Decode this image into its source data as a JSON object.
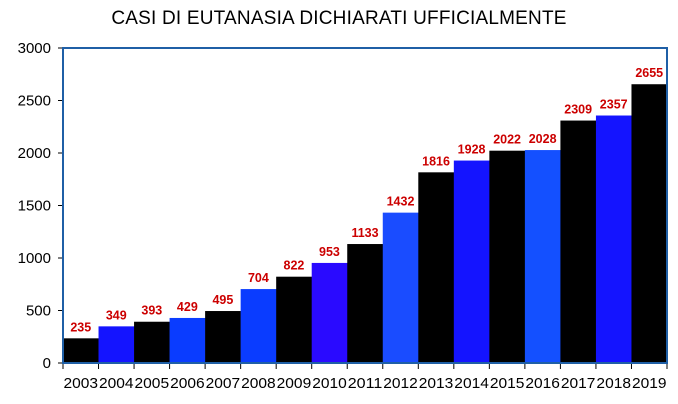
{
  "chart_data": {
    "type": "bar",
    "title": "CASI DI EUTANASIA DICHIARATI UFFICIALMENTE",
    "xlabel": "",
    "ylabel": "",
    "ylim": [
      0,
      3000
    ],
    "yticks": [
      0,
      500,
      1000,
      1500,
      2000,
      2500,
      3000
    ],
    "categories": [
      "2003",
      "2004",
      "2005",
      "2006",
      "2007",
      "2008",
      "2009",
      "2010",
      "2011",
      "2012",
      "2013",
      "2014",
      "2015",
      "2016",
      "2017",
      "2018",
      "2019"
    ],
    "values": [
      235,
      349,
      393,
      429,
      495,
      704,
      822,
      953,
      1133,
      1432,
      1816,
      1928,
      2022,
      2028,
      2309,
      2357,
      2655
    ],
    "data_labels": [
      "235",
      "349",
      "393",
      "429",
      "495",
      "704",
      "822",
      "953",
      "1133",
      "1432",
      "1816",
      "1928",
      "2022",
      "2028",
      "2309",
      "2357",
      "2655"
    ],
    "bar_colors": [
      "#000000",
      "#1414ff",
      "#000000",
      "#0a3cff",
      "#000000",
      "#0a3cff",
      "#000000",
      "#2a0aff",
      "#000000",
      "#1a4cff",
      "#000000",
      "#1414ff",
      "#000000",
      "#1450ff",
      "#000000",
      "#1414ff",
      "#000000"
    ],
    "label_color": "#cc0000",
    "frame_color": "#1f5fa6",
    "grid": false,
    "legend": "none"
  }
}
